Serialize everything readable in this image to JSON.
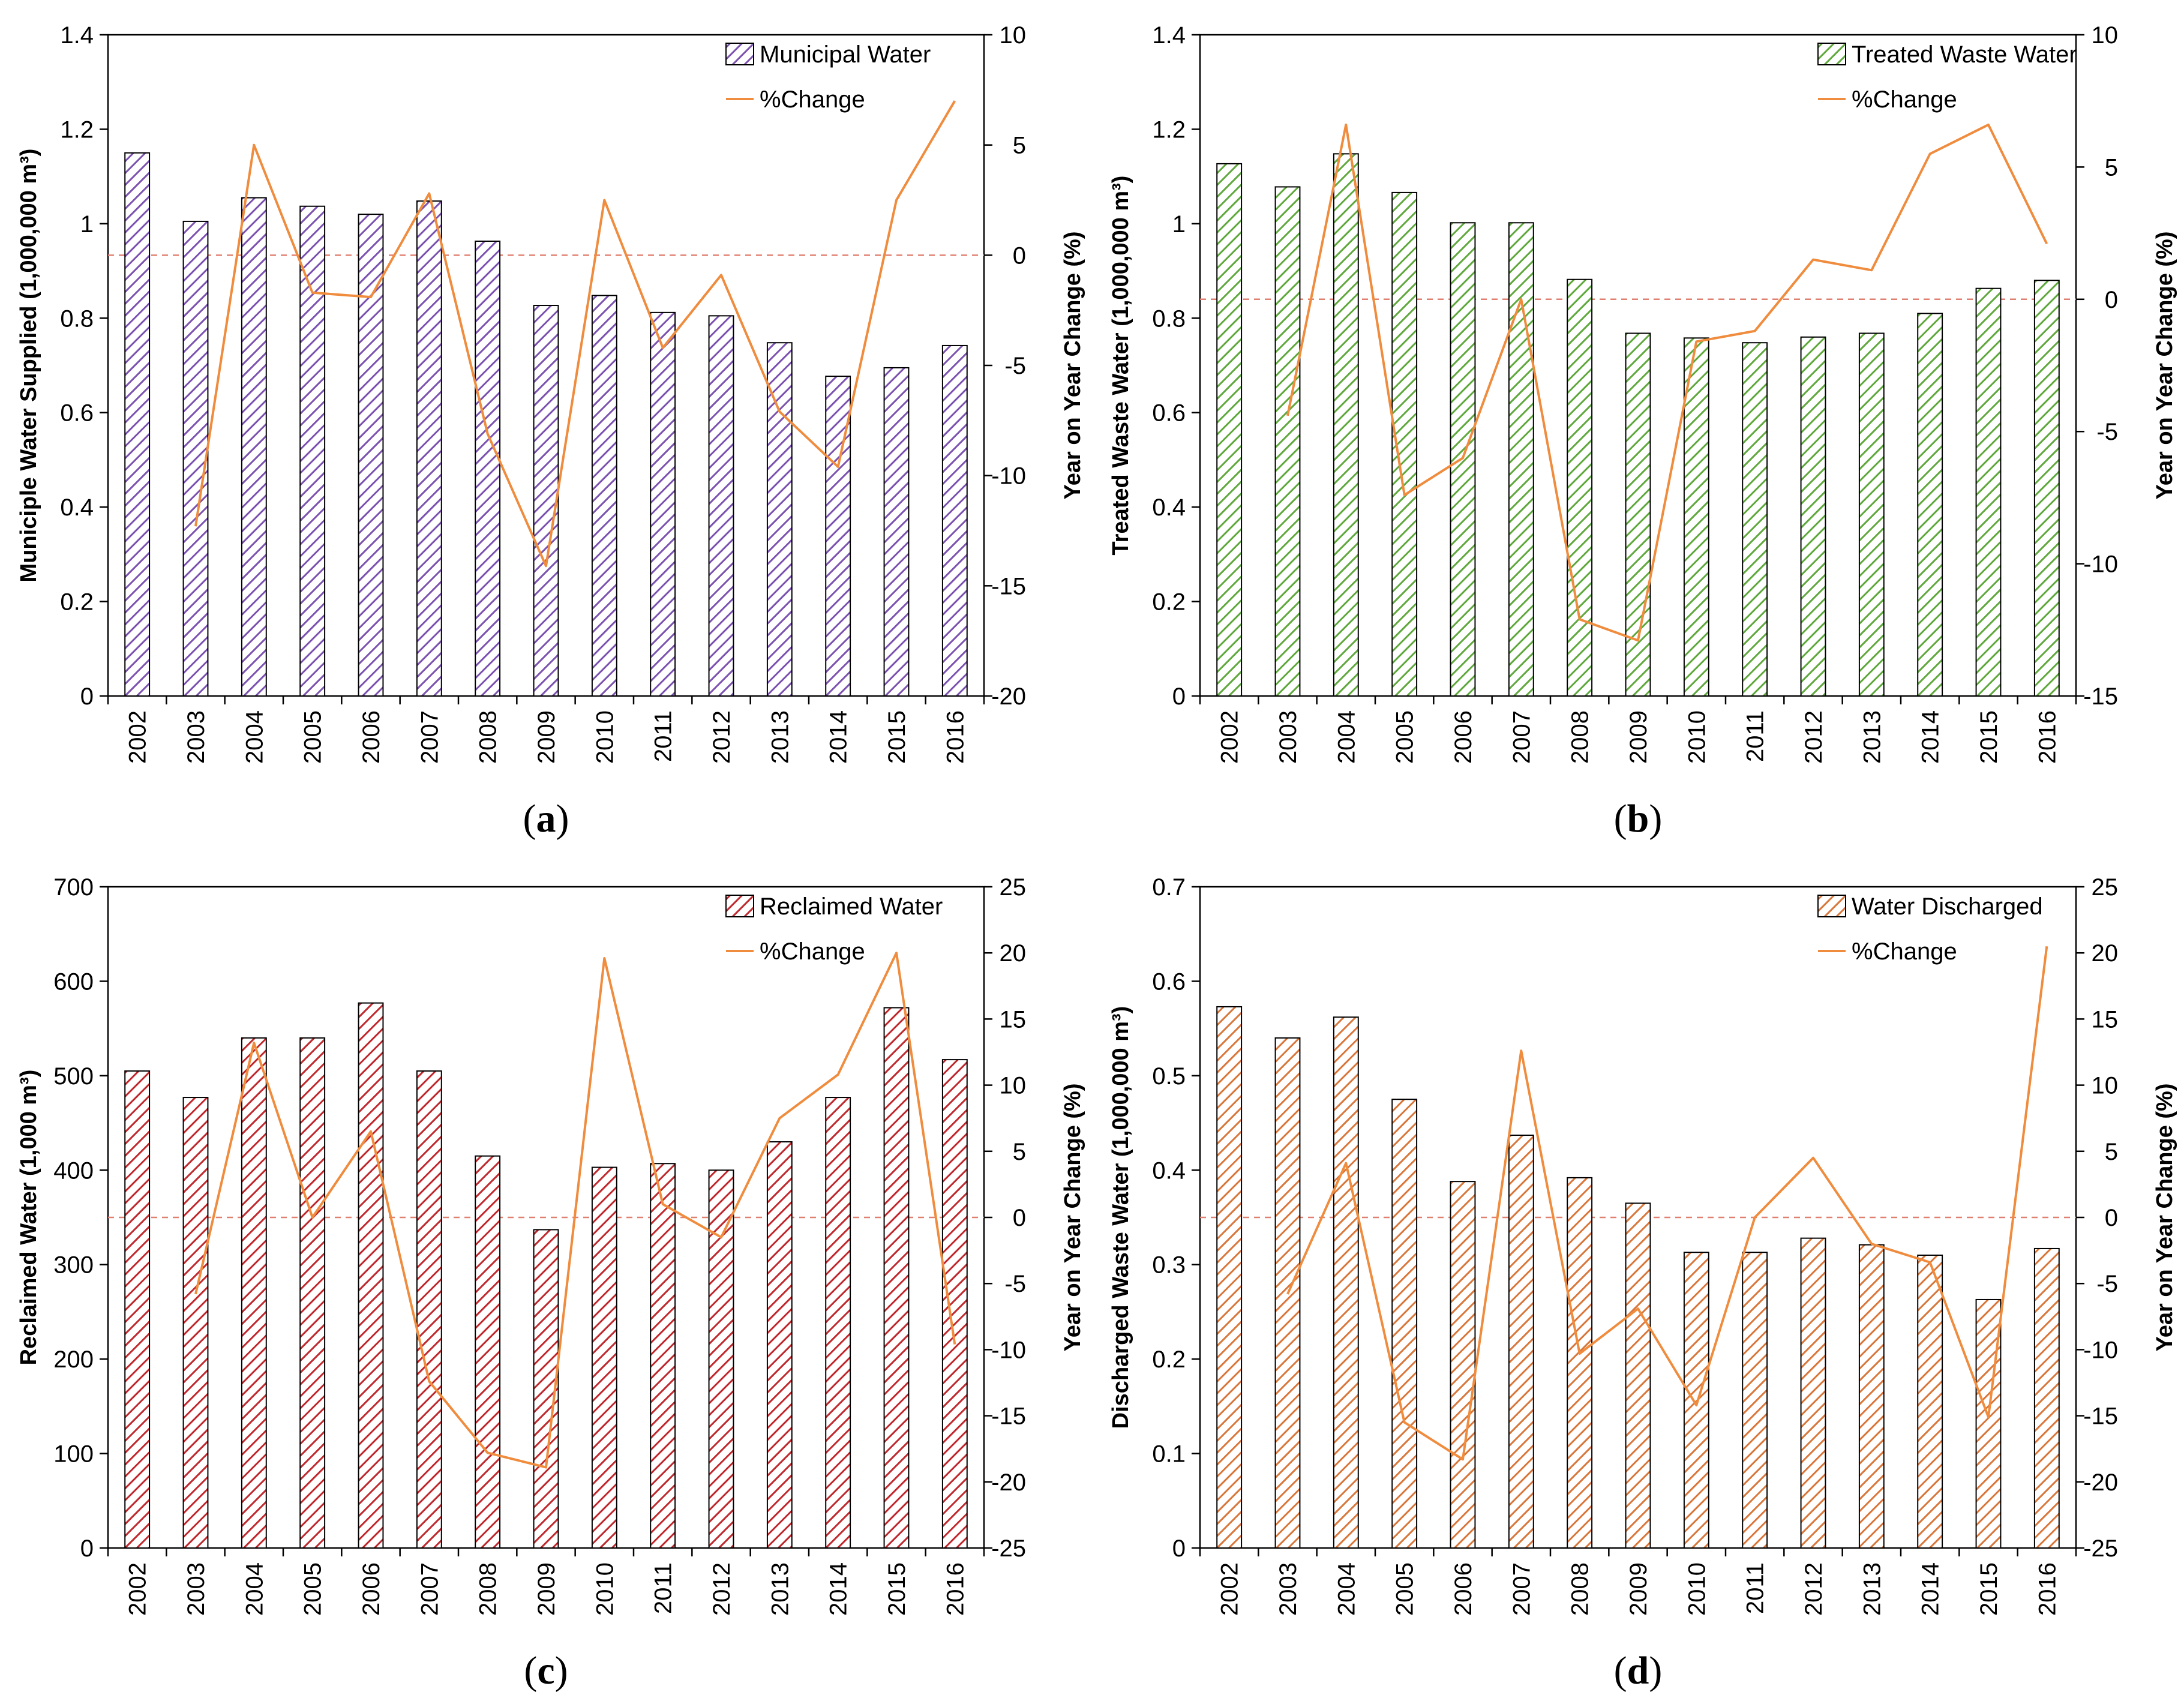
{
  "chart_data": [
    {
      "id": "a",
      "type": "bar+line",
      "caption": "a",
      "categories": [
        "2002",
        "2003",
        "2004",
        "2005",
        "2006",
        "2007",
        "2008",
        "2009",
        "2010",
        "2011",
        "2012",
        "2013",
        "2014",
        "2015",
        "2016"
      ],
      "bar_series": {
        "name": "Municipal Water",
        "values": [
          1.15,
          1.005,
          1.055,
          1.037,
          1.02,
          1.048,
          0.963,
          0.827,
          0.848,
          0.812,
          0.805,
          0.748,
          0.677,
          0.695,
          0.742
        ],
        "color": "#7b52b0"
      },
      "line_series": {
        "name": "%Change",
        "values": [
          null,
          -12.3,
          5.0,
          -1.7,
          -1.9,
          2.8,
          -8.1,
          -14.1,
          2.5,
          -4.2,
          -0.9,
          -7.1,
          -9.6,
          2.5,
          7.0
        ],
        "color": "#f08c3e"
      },
      "ylabel_left": "Municiple Water Supplied (1,000,000 m³)",
      "ylabel_right": "Year on Year Change (%)",
      "ylim_left": [
        0,
        1.4
      ],
      "yticks_left": [
        "0",
        "0.2",
        "0.4",
        "0.6",
        "0.8",
        "1",
        "1.2",
        "1.4"
      ],
      "ylim_right": [
        -20,
        10
      ],
      "yticks_right": [
        "-20",
        "-15",
        "-10",
        "-5",
        "0",
        "5",
        "10"
      ],
      "legend_position": "top-right"
    },
    {
      "id": "b",
      "type": "bar+line",
      "caption": "b",
      "categories": [
        "2002",
        "2003",
        "2004",
        "2005",
        "2006",
        "2007",
        "2008",
        "2009",
        "2010",
        "2011",
        "2012",
        "2013",
        "2014",
        "2015",
        "2016"
      ],
      "bar_series": {
        "name": "Treated Waste Water",
        "values": [
          1.127,
          1.078,
          1.148,
          1.066,
          1.002,
          1.002,
          0.882,
          0.768,
          0.758,
          0.748,
          0.76,
          0.768,
          0.81,
          0.863,
          0.88
        ],
        "color": "#5fa83c"
      },
      "line_series": {
        "name": "%Change",
        "values": [
          null,
          -4.4,
          6.6,
          -7.4,
          -6.0,
          0.0,
          -12.1,
          -12.9,
          -1.6,
          -1.2,
          1.5,
          1.1,
          5.5,
          6.6,
          2.1
        ],
        "color": "#f08c3e"
      },
      "ylabel_left": "Treated Waste Water (1,000,000 m³)",
      "ylabel_right": "Year on Year Change (%)",
      "ylim_left": [
        0,
        1.4
      ],
      "yticks_left": [
        "0",
        "0.2",
        "0.4",
        "0.6",
        "0.8",
        "1",
        "1.2",
        "1.4"
      ],
      "ylim_right": [
        -15,
        10
      ],
      "yticks_right": [
        "-15",
        "-10",
        "-5",
        "0",
        "5",
        "10"
      ],
      "legend_position": "top-right"
    },
    {
      "id": "c",
      "type": "bar+line",
      "caption": "c",
      "categories": [
        "2002",
        "2003",
        "2004",
        "2005",
        "2006",
        "2007",
        "2008",
        "2009",
        "2010",
        "2011",
        "2012",
        "2013",
        "2014",
        "2015",
        "2016"
      ],
      "bar_series": {
        "name": "Reclaimed Water",
        "values": [
          505,
          477,
          540,
          540,
          577,
          505,
          415,
          337,
          403,
          407,
          400,
          430,
          477,
          572,
          517
        ],
        "color": "#c0282d"
      },
      "line_series": {
        "name": "%Change",
        "values": [
          null,
          -5.8,
          13.2,
          0.0,
          6.5,
          -12.4,
          -17.8,
          -18.9,
          19.6,
          1.0,
          -1.5,
          7.5,
          10.8,
          20.0,
          -9.6
        ],
        "color": "#f08c3e"
      },
      "ylabel_left": "Reclaimed Water (1,000 m³)",
      "ylabel_right": "Year on Year Change (%)",
      "ylim_left": [
        0,
        700
      ],
      "yticks_left": [
        "0",
        "100",
        "200",
        "300",
        "400",
        "500",
        "600",
        "700"
      ],
      "ylim_right": [
        -25,
        25
      ],
      "yticks_right": [
        "-25",
        "-20",
        "-15",
        "-10",
        "-5",
        "0",
        "5",
        "10",
        "15",
        "20",
        "25"
      ],
      "legend_position": "top-right"
    },
    {
      "id": "d",
      "type": "bar+line",
      "caption": "d",
      "categories": [
        "2002",
        "2003",
        "2004",
        "2005",
        "2006",
        "2007",
        "2008",
        "2009",
        "2010",
        "2011",
        "2012",
        "2013",
        "2014",
        "2015",
        "2016"
      ],
      "bar_series": {
        "name": "Water Discharged",
        "values": [
          0.573,
          0.54,
          0.562,
          0.475,
          0.388,
          0.437,
          0.392,
          0.365,
          0.313,
          0.313,
          0.328,
          0.321,
          0.31,
          0.263,
          0.317
        ],
        "color": "#d9763a"
      },
      "line_series": {
        "name": "%Change",
        "values": [
          null,
          -5.8,
          4.1,
          -15.5,
          -18.3,
          12.6,
          -10.3,
          -6.9,
          -14.2,
          0.0,
          4.5,
          -2.0,
          -3.4,
          -15.1,
          20.5
        ],
        "color": "#f08c3e"
      },
      "ylabel_left": "Discharged Waste Water (1,000,000 m³)",
      "ylabel_right": "Year on Year Change (%)",
      "ylim_left": [
        0,
        0.7
      ],
      "yticks_left": [
        "0",
        "0.1",
        "0.2",
        "0.3",
        "0.4",
        "0.5",
        "0.6",
        "0.7"
      ],
      "ylim_right": [
        -25,
        25
      ],
      "yticks_right": [
        "-25",
        "-20",
        "-15",
        "-10",
        "-5",
        "0",
        "5",
        "10",
        "15",
        "20",
        "25"
      ],
      "legend_position": "top-right"
    }
  ]
}
